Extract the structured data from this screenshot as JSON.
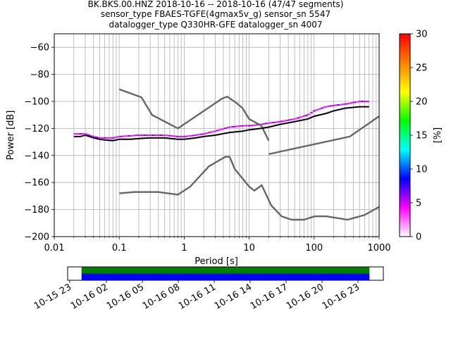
{
  "chart_data": {
    "type": "heatmap",
    "title_lines": [
      "BK.BKS.00.HNZ   2018-10-16 -- 2018-10-16  (47/47 segments)",
      "sensor_type FBAES-TGFE(4gmax5v_g) sensor_sn 5547",
      "datalogger_type Q330HR-GFE datalogger_sn 4007"
    ],
    "xlabel": "Period [s]",
    "ylabel": "Power [dB]",
    "x_scale": "log",
    "xlim": [
      0.01,
      1000
    ],
    "ylim": [
      -200,
      -50
    ],
    "x_ticks": [
      0.01,
      0.1,
      1,
      10,
      100,
      1000
    ],
    "x_tick_labels": [
      "0.01",
      "0.1",
      "1",
      "10",
      "100",
      "1000"
    ],
    "y_ticks": [
      -200,
      -180,
      -160,
      -140,
      -120,
      -100,
      -80,
      -60
    ],
    "y_tick_labels": [
      "−200",
      "−180",
      "−160",
      "−140",
      "−120",
      "−100",
      "−80",
      "−60"
    ],
    "grid": true,
    "colorbar": {
      "label": "[%]",
      "min": 0,
      "max": 30,
      "ticks": [
        0,
        5,
        10,
        15,
        20,
        25,
        30
      ],
      "tick_labels": [
        "0",
        "5",
        "10",
        "15",
        "20",
        "25",
        "30"
      ],
      "colors": [
        "#ffffff",
        "#ff00ff",
        "#0000ff",
        "#00ffff",
        "#00ff00",
        "#ffff00",
        "#ff8000",
        "#ff0000"
      ]
    },
    "noise_models": {
      "high": {
        "x": [
          0.1,
          0.22,
          0.32,
          0.8,
          3.8,
          4.6,
          6.3,
          7.9,
          10,
          15.4,
          20
        ],
        "y": [
          -91,
          -97,
          -110,
          -120,
          -98,
          -96.5,
          -101,
          -105,
          -113,
          -118,
          -129
        ]
      },
      "new_high": {
        "x": [
          20,
          354,
          1000
        ],
        "y": [
          -139,
          -126,
          -111
        ]
      },
      "low": {
        "x": [
          0.1,
          0.17,
          0.4,
          0.8,
          1.24,
          2.4,
          4.3,
          5,
          6,
          10,
          12,
          15.6,
          21.9,
          31.6,
          45,
          70,
          101,
          154,
          328,
          600,
          1000
        ],
        "y": [
          -168,
          -167,
          -167,
          -169,
          -163,
          -148,
          -141,
          -141,
          -150,
          -163,
          -166,
          -162,
          -177,
          -185,
          -187.5,
          -187.5,
          -185,
          -185,
          -187.5,
          -184,
          -178
        ]
      }
    },
    "mode_curve": {
      "x": [
        0.02,
        0.025,
        0.03,
        0.035,
        0.04,
        0.05,
        0.06,
        0.08,
        0.1,
        0.15,
        0.2,
        0.3,
        0.5,
        0.8,
        1,
        1.5,
        2,
        3,
        5,
        8,
        10,
        15,
        20,
        30,
        50,
        80,
        100,
        150,
        200,
        300,
        500,
        700
      ],
      "y": [
        -126,
        -126,
        -125,
        -126,
        -127,
        -128,
        -128.5,
        -129,
        -128,
        -128,
        -127.5,
        -127,
        -127,
        -128,
        -128,
        -127,
        -126,
        -125,
        -123,
        -122,
        -121,
        -120,
        -119,
        -117,
        -115,
        -113,
        -111,
        -109,
        -107,
        -105,
        -104,
        -104
      ]
    },
    "pdf_band": {
      "x": [
        0.02,
        0.03,
        0.04,
        0.05,
        0.08,
        0.1,
        0.2,
        0.3,
        0.5,
        0.8,
        1,
        1.5,
        2,
        3,
        5,
        8,
        10,
        15,
        20,
        30,
        50,
        80,
        100,
        150,
        200,
        300,
        500,
        700
      ],
      "y_upper": [
        -124,
        -124,
        -126,
        -127,
        -127,
        -126,
        -125,
        -125,
        -125,
        -126,
        -126,
        -125,
        -124,
        -122,
        -119,
        -118,
        -118,
        -117,
        -116,
        -115,
        -113,
        -110,
        -107,
        -104,
        -103,
        -102,
        -100,
        -100
      ],
      "y_lower": [
        -127,
        -126,
        -128,
        -129,
        -130,
        -130,
        -130,
        -129,
        -129,
        -130,
        -130,
        -129,
        -128,
        -127,
        -125,
        -124,
        -123,
        -122,
        -120,
        -119,
        -118,
        -116,
        -115,
        -113,
        -111,
        -108,
        -107,
        -107
      ]
    },
    "time_coverage": {
      "tick_labels": [
        "10-15 23",
        "10-16 02",
        "10-16 05",
        "10-16 08",
        "10-16 11",
        "10-16 14",
        "10-16 17",
        "10-16 20",
        "10-16 23"
      ],
      "start_fraction": 0.044,
      "end_fraction": 0.956,
      "upper_color": "#008000",
      "lower_color": "#0000ff"
    }
  }
}
